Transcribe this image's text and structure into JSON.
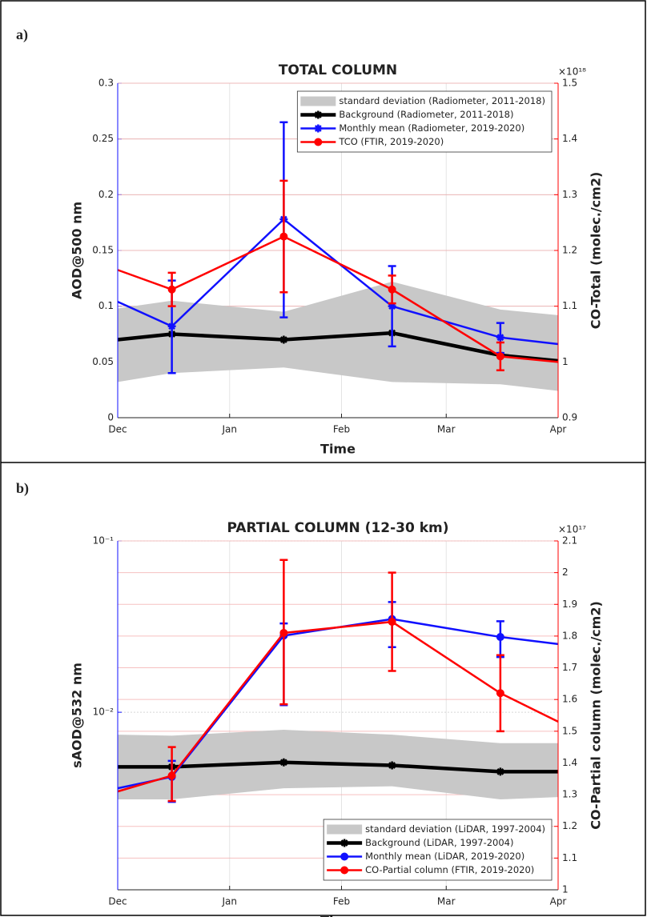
{
  "chart_data": [
    {
      "type": "line",
      "panel_label": "a)",
      "title": "TOTAL COLUMN",
      "xlabel": "Time",
      "ylabel": "AOD@500 nm",
      "y2label": "CO-Total (molec./cm2)",
      "y2_exponent": "×10¹⁸",
      "xlim": [
        0,
        122
      ],
      "xticks": [
        {
          "value": 0,
          "label": "Dec"
        },
        {
          "value": 31,
          "label": "Jan"
        },
        {
          "value": 62,
          "label": "Feb"
        },
        {
          "value": 91,
          "label": "Mar"
        },
        {
          "value": 122,
          "label": "Apr"
        }
      ],
      "ylim": [
        0,
        0.3
      ],
      "yticks": [
        0,
        0.05,
        0.1,
        0.15,
        0.2,
        0.25,
        0.3
      ],
      "y2lim": [
        0.9,
        1.5
      ],
      "y2ticks": [
        0.9,
        1,
        1.1,
        1.2,
        1.3,
        1.4,
        1.5
      ],
      "grid": true,
      "legend_position": "top-right",
      "x": [
        0,
        15,
        46,
        76,
        106,
        122
      ],
      "series": [
        {
          "name": "standard deviation (Radiometer, 2011-2018)",
          "color": "#c8c8c8",
          "lower": [
            0.032,
            0.04,
            0.045,
            0.032,
            0.03,
            0.024
          ],
          "upper": [
            0.098,
            0.105,
            0.095,
            0.122,
            0.097,
            0.092
          ]
        },
        {
          "name": "Background (Radiometer, 2011-2018)",
          "color": "#000000",
          "marker": "star",
          "values": [
            0.07,
            0.075,
            0.07,
            0.076,
            0.056,
            0.051
          ]
        },
        {
          "name": "Monthly mean (Radiometer, 2019-2020)",
          "color": "#1010ff",
          "marker": "star",
          "values": [
            0.104,
            0.082,
            0.178,
            0.1,
            0.072,
            0.066
          ],
          "lower": [
            null,
            0.04,
            0.09,
            0.064,
            0.058,
            null
          ],
          "upper": [
            null,
            0.123,
            0.265,
            0.136,
            0.085,
            null
          ]
        },
        {
          "name": "TCO (FTIR, 2019-2020)",
          "color": "#ff0000",
          "marker": "circle",
          "axis": "y2",
          "values": [
            1.165,
            1.13,
            1.225,
            1.13,
            1.01,
            1.0
          ],
          "lower": [
            null,
            1.1,
            1.125,
            1.105,
            0.985,
            null
          ],
          "upper": [
            null,
            1.16,
            1.325,
            1.155,
            1.035,
            null
          ]
        }
      ]
    },
    {
      "type": "line",
      "panel_label": "b)",
      "title": "PARTIAL COLUMN (12-30 km)",
      "xlabel": "Time",
      "ylabel": "sAOD@532 nm",
      "y2label": "CO-Partial column (molec./cm2)",
      "y2_exponent": "×10¹⁷",
      "xlim": [
        0,
        122
      ],
      "xticks": [
        {
          "value": 0,
          "label": "Dec"
        },
        {
          "value": 31,
          "label": "Jan"
        },
        {
          "value": 62,
          "label": "Feb"
        },
        {
          "value": 91,
          "label": "Mar"
        },
        {
          "value": 122,
          "label": "Apr"
        }
      ],
      "ylog": true,
      "ylim": [
        0.00092,
        0.1
      ],
      "yticks": [
        {
          "value": 0.1,
          "label": "10⁻¹"
        },
        {
          "value": 0.01,
          "label": "10⁻²"
        }
      ],
      "y2lim": [
        1,
        2.1
      ],
      "y2ticks": [
        1,
        1.1,
        1.2,
        1.3,
        1.4,
        1.5,
        1.6,
        1.7,
        1.8,
        1.9,
        2,
        2.1
      ],
      "grid": true,
      "legend_position": "bottom-right",
      "x": [
        0,
        15,
        46,
        76,
        106,
        122
      ],
      "series": [
        {
          "name": "standard deviation (LiDAR, 1997-2004)",
          "color": "#c8c8c8",
          "lower": [
            0.0031,
            0.0031,
            0.0036,
            0.0037,
            0.0031,
            0.0032
          ],
          "upper": [
            0.0074,
            0.0073,
            0.0079,
            0.0074,
            0.0066,
            0.0066
          ]
        },
        {
          "name": "Background (LiDAR, 1997-2004)",
          "color": "#000000",
          "marker": "star",
          "values": [
            0.0048,
            0.0048,
            0.0051,
            0.0049,
            0.0045,
            0.0045
          ]
        },
        {
          "name": "Monthly mean (LiDAR, 2019-2020)",
          "color": "#1010ff",
          "marker": "circle",
          "values": [
            0.0036,
            0.0042,
            0.028,
            0.035,
            0.0275,
            0.025
          ],
          "lower": [
            null,
            0.003,
            0.011,
            0.024,
            0.021,
            null
          ],
          "upper": [
            null,
            0.0052,
            0.033,
            0.044,
            0.034,
            null
          ]
        },
        {
          "name": "CO-Partial column (FTIR, 2019-2020)",
          "color": "#ff0000",
          "marker": "circle",
          "axis": "y2",
          "values": [
            1.31,
            1.36,
            1.81,
            1.845,
            1.62,
            1.53
          ],
          "lower": [
            null,
            1.28,
            1.585,
            1.69,
            1.5,
            null
          ],
          "upper": [
            null,
            1.45,
            2.04,
            2.0,
            1.74,
            null
          ]
        }
      ]
    }
  ]
}
